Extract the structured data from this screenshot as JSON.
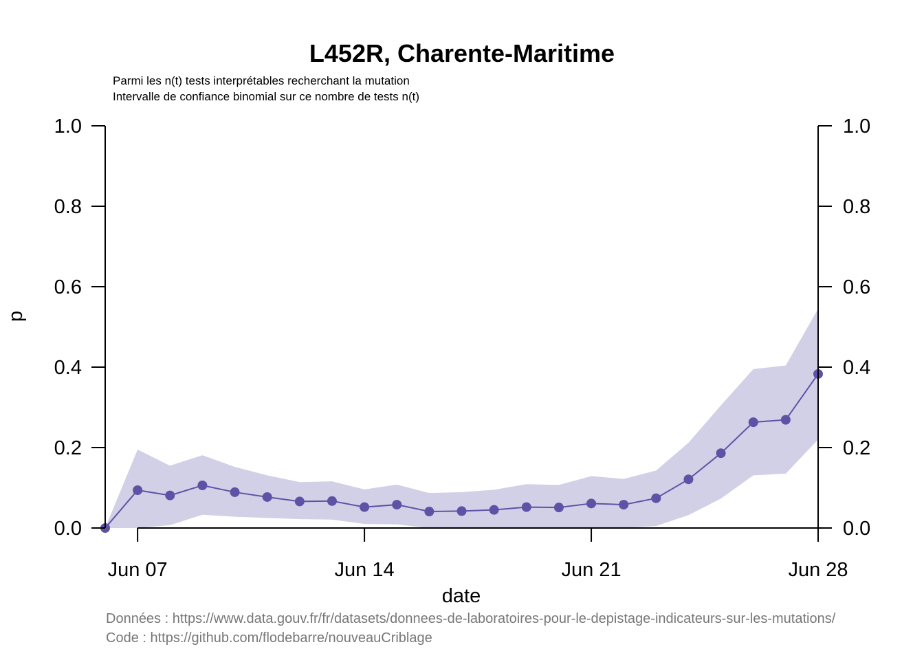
{
  "chart_data": {
    "type": "line",
    "title": "L452R, Charente-Maritime",
    "subtitle_lines": [
      "Parmi les n(t) tests interprétables recherchant la mutation",
      "Intervalle de confiance binomial sur ce nombre de tests n(t)"
    ],
    "xlabel": "date",
    "ylabel": "p",
    "ylim": [
      0,
      1
    ],
    "y_ticks": [
      "0.0",
      "0.2",
      "0.4",
      "0.6",
      "0.8",
      "1.0"
    ],
    "x_ticks": [
      {
        "label": "Jun 07",
        "day": 7
      },
      {
        "label": "Jun 14",
        "day": 14
      },
      {
        "label": "Jun 21",
        "day": 21
      },
      {
        "label": "Jun 28",
        "day": 28
      }
    ],
    "x_range_days": [
      6,
      28
    ],
    "series": [
      {
        "days": [
          6,
          7,
          8,
          9,
          10,
          11,
          12,
          13,
          14,
          15,
          16,
          17,
          18,
          19,
          20,
          21,
          22,
          23,
          24,
          25,
          26,
          27,
          28
        ],
        "values": [
          0.0,
          0.094,
          0.081,
          0.106,
          0.089,
          0.077,
          0.066,
          0.067,
          0.052,
          0.058,
          0.041,
          0.042,
          0.045,
          0.052,
          0.051,
          0.061,
          0.058,
          0.074,
          0.121,
          0.186,
          0.263,
          0.269,
          0.383
        ],
        "lower": [
          0.0,
          0.0,
          0.007,
          0.033,
          0.028,
          0.025,
          0.022,
          0.021,
          0.01,
          0.009,
          0.0,
          0.0,
          0.0,
          0.0,
          0.0,
          0.0,
          0.0,
          0.005,
          0.032,
          0.073,
          0.131,
          0.135,
          0.22
        ],
        "upper": [
          0.0,
          0.195,
          0.155,
          0.181,
          0.152,
          0.131,
          0.114,
          0.116,
          0.096,
          0.108,
          0.087,
          0.089,
          0.095,
          0.109,
          0.107,
          0.129,
          0.122,
          0.143,
          0.212,
          0.305,
          0.395,
          0.404,
          0.545
        ]
      }
    ],
    "line_color": "#5e52a6",
    "band_color": "#d2d0e6",
    "grid": false,
    "legend": "none",
    "source_lines": [
      "Données : https://www.data.gouv.fr/fr/datasets/donnees-de-laboratoires-pour-le-depistage-indicateurs-sur-les-mutations/",
      "Code : https://github.com/flodebarre/nouveauCriblage"
    ]
  }
}
